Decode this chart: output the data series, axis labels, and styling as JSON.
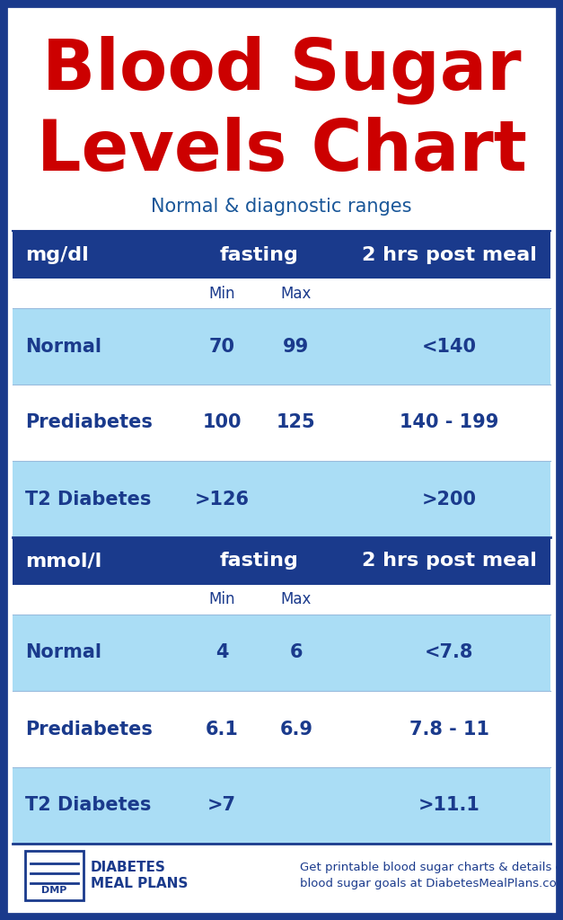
{
  "title_line1": "Blood Sugar",
  "title_line2": "Levels Chart",
  "subtitle": "Normal & diagnostic ranges",
  "title_color": "#cc0000",
  "subtitle_color": "#1a5799",
  "bg_color": "#ffffff",
  "border_color": "#1a3a8c",
  "header_bg": "#1a3a8c",
  "header_text_color": "#ffffff",
  "light_blue": "#aaddf5",
  "white": "#ffffff",
  "dark_blue_text": "#1a3a8c",
  "table1_unit": "mg/dl",
  "table1_col1": "fasting",
  "table1_col2": "2 hrs post meal",
  "table1_subheaders": [
    "Min",
    "Max"
  ],
  "table1_rows": [
    {
      "label": "Normal",
      "min": "70",
      "max": "99",
      "post": "<140",
      "shade": true
    },
    {
      "label": "Prediabetes",
      "min": "100",
      "max": "125",
      "post": "140 - 199",
      "shade": false
    },
    {
      "label": "T2 Diabetes",
      "min": ">126",
      "max": "",
      "post": ">200",
      "shade": true
    }
  ],
  "table2_unit": "mmol/l",
  "table2_col1": "fasting",
  "table2_col2": "2 hrs post meal",
  "table2_subheaders": [
    "Min",
    "Max"
  ],
  "table2_rows": [
    {
      "label": "Normal",
      "min": "4",
      "max": "6",
      "post": "<7.8",
      "shade": true
    },
    {
      "label": "Prediabetes",
      "min": "6.1",
      "max": "6.9",
      "post": "7.8 - 11",
      "shade": false
    },
    {
      "label": "T2 Diabetes",
      "min": ">7",
      "max": "",
      "post": ">11.1",
      "shade": true
    }
  ],
  "footer_logo_text": "DMP",
  "footer_brand1": "DIABETES",
  "footer_brand2": "MEAL PLANS",
  "footer_info": "Get printable blood sugar charts & details on\nblood sugar goals at DiabetesMealPlans.com/BS"
}
